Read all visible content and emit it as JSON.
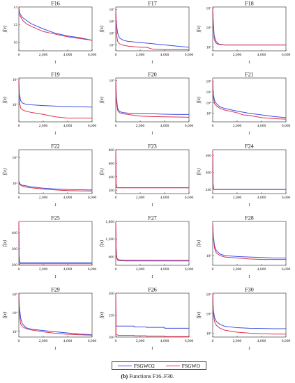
{
  "legend": [
    {
      "name": "FSGWO2",
      "color": "#3b4fe0"
    },
    {
      "name": "FSGWO",
      "color": "#e0304e"
    }
  ],
  "caption": {
    "label": "(b)",
    "text": "Functions F16–F30."
  },
  "xlabel": "t",
  "ylabel": "f(x)",
  "chart_data": [
    {
      "type": "line",
      "title": "F16",
      "xlim": [
        0,
        6000
      ],
      "xticks": [
        0,
        2000,
        4000,
        6000
      ],
      "ylim": [
        9,
        14
      ],
      "yscale": "linear",
      "yticks": [
        10,
        12,
        14
      ],
      "ytick_labels": [
        "10",
        "12",
        "14"
      ],
      "x": [
        0,
        100,
        300,
        600,
        1000,
        2000,
        3000,
        4000,
        5000,
        6000
      ],
      "series": [
        {
          "name": "FSGWO2",
          "values": [
            13.9,
            13.2,
            12.8,
            12.5,
            12.1,
            11.5,
            11.0,
            10.7,
            10.5,
            10.2
          ]
        },
        {
          "name": "FSGWO",
          "values": [
            13.9,
            13.0,
            12.5,
            12.1,
            11.8,
            11.2,
            10.9,
            10.6,
            10.4,
            10.2
          ]
        }
      ]
    },
    {
      "type": "line",
      "title": "F17",
      "xlim": [
        0,
        6000
      ],
      "xticks": [
        0,
        2000,
        4000,
        6000
      ],
      "ylim": [
        3.5,
        7.2
      ],
      "yscale": "log",
      "yticks": [
        4,
        5,
        6,
        7
      ],
      "ytick_labels": [
        "10⁴",
        "10⁵",
        "10⁶",
        "10⁷"
      ],
      "x": [
        0,
        50,
        150,
        300,
        600,
        1000,
        2000,
        2500,
        3000,
        4000,
        5000,
        6000
      ],
      "series": [
        {
          "name": "FSGWO2",
          "values": [
            6.9,
            5.8,
            5.0,
            4.6,
            4.4,
            4.3,
            4.2,
            4.15,
            4.1,
            4.0,
            3.9,
            3.8
          ]
        },
        {
          "name": "FSGWO",
          "values": [
            6.9,
            5.0,
            4.3,
            4.1,
            3.98,
            3.9,
            3.8,
            3.8,
            3.65,
            3.6,
            3.6,
            3.6
          ]
        }
      ]
    },
    {
      "type": "line",
      "title": "F18",
      "xlim": [
        0,
        6000
      ],
      "xticks": [
        0,
        2000,
        4000,
        6000
      ],
      "ylim": [
        2.6,
        7.1
      ],
      "yscale": "log",
      "yticks": [
        3,
        5,
        7
      ],
      "ytick_labels": [
        "10³",
        "10⁵",
        "10⁷"
      ],
      "x": [
        0,
        50,
        120,
        250,
        500,
        1000,
        2000,
        3000,
        4000,
        5000,
        6000
      ],
      "series": [
        {
          "name": "FSGWO2",
          "values": [
            7.0,
            5.5,
            4.2,
            3.6,
            3.3,
            3.2,
            3.2,
            3.2,
            3.2,
            3.2,
            3.2
          ]
        },
        {
          "name": "FSGWO",
          "values": [
            7.0,
            5.0,
            3.8,
            3.4,
            3.25,
            3.2,
            3.2,
            3.2,
            3.2,
            3.2,
            3.2
          ]
        }
      ]
    },
    {
      "type": "line",
      "title": "F19",
      "xlim": [
        0,
        6000
      ],
      "xticks": [
        0,
        2000,
        4000,
        6000
      ],
      "ylim": [
        0.3,
        2.05
      ],
      "yscale": "log",
      "yticks": [
        1,
        2
      ],
      "ytick_labels": [
        "10¹",
        "10²"
      ],
      "x": [
        0,
        50,
        150,
        300,
        600,
        1000,
        2000,
        3000,
        4000,
        5000,
        6000
      ],
      "series": [
        {
          "name": "FSGWO2",
          "values": [
            2.0,
            1.4,
            1.15,
            1.05,
            1.0,
            0.98,
            0.95,
            0.93,
            0.91,
            0.9,
            0.89
          ]
        },
        {
          "name": "FSGWO",
          "values": [
            2.0,
            1.1,
            0.85,
            0.78,
            0.72,
            0.68,
            0.6,
            0.5,
            0.45,
            0.45,
            0.45
          ]
        }
      ]
    },
    {
      "type": "line",
      "title": "F20",
      "xlim": [
        0,
        6000
      ],
      "xticks": [
        0,
        2000,
        4000,
        6000
      ],
      "ylim": [
        3.2,
        5.1
      ],
      "yscale": "log",
      "yticks": [
        5
      ],
      "ytick_labels": [
        "10⁵"
      ],
      "x": [
        0,
        50,
        150,
        300,
        600,
        1000,
        2000,
        3000,
        4000,
        5000,
        6000
      ],
      "series": [
        {
          "name": "FSGWO2",
          "values": [
            5.0,
            4.3,
            3.8,
            3.65,
            3.6,
            3.58,
            3.55,
            3.55,
            3.53,
            3.52,
            3.52
          ]
        },
        {
          "name": "FSGWO",
          "values": [
            5.0,
            4.1,
            3.7,
            3.6,
            3.55,
            3.52,
            3.45,
            3.43,
            3.42,
            3.41,
            3.4
          ]
        }
      ]
    },
    {
      "type": "line",
      "title": "F21",
      "xlim": [
        0,
        6000
      ],
      "xticks": [
        0,
        2000,
        4000,
        6000
      ],
      "ylim": [
        2.2,
        6.3
      ],
      "yscale": "log",
      "yticks": [
        3,
        4,
        5,
        6
      ],
      "ytick_labels": [
        "10³",
        "10⁴",
        "10⁵",
        "10⁶"
      ],
      "x": [
        0,
        50,
        150,
        300,
        600,
        1000,
        2000,
        2500,
        3000,
        4000,
        5000,
        6000
      ],
      "series": [
        {
          "name": "FSGWO2",
          "values": [
            6.1,
            4.8,
            4.2,
            3.9,
            3.6,
            3.45,
            3.2,
            3.1,
            3.0,
            2.85,
            2.7,
            2.6
          ]
        },
        {
          "name": "FSGWO",
          "values": [
            6.1,
            4.5,
            3.9,
            3.7,
            3.45,
            3.3,
            3.05,
            2.85,
            2.8,
            2.6,
            2.5,
            2.45
          ]
        }
      ]
    },
    {
      "type": "line",
      "title": "F22",
      "xlim": [
        0,
        6000
      ],
      "xticks": [
        0,
        2000,
        4000,
        6000
      ],
      "ylim": [
        1.2,
        4.6
      ],
      "yscale": "log",
      "yticks": [
        2,
        4
      ],
      "ytick_labels": [
        "10²",
        "10⁴"
      ],
      "x": [
        0,
        50,
        150,
        300,
        600,
        1000,
        2000,
        3000,
        4000,
        5000,
        6000
      ],
      "series": [
        {
          "name": "FSGWO2",
          "values": [
            2.2,
            2.0,
            1.9,
            1.85,
            1.8,
            1.72,
            1.62,
            1.56,
            1.52,
            1.5,
            1.48
          ]
        },
        {
          "name": "FSGWO",
          "values": [
            2.2,
            1.95,
            1.85,
            1.78,
            1.7,
            1.65,
            1.55,
            1.48,
            1.43,
            1.41,
            1.4
          ]
        }
      ]
    },
    {
      "type": "line",
      "title": "F23",
      "xlim": [
        0,
        6000
      ],
      "xticks": [
        0,
        2000,
        4000,
        6000
      ],
      "ylim": [
        150,
        800
      ],
      "yscale": "linear",
      "yticks": [
        200,
        400,
        600,
        800
      ],
      "ytick_labels": [
        "200",
        "400",
        "600",
        "800"
      ],
      "x": [
        0,
        30,
        80,
        200,
        6000
      ],
      "series": [
        {
          "name": "FSGWO2",
          "values": [
            800,
            300,
            240,
            238,
            238
          ]
        },
        {
          "name": "FSGWO",
          "values": [
            800,
            280,
            236,
            235,
            235
          ]
        }
      ]
    },
    {
      "type": "line",
      "title": "F24",
      "xlim": [
        0,
        6000
      ],
      "xticks": [
        0,
        2000,
        4000,
        6000
      ],
      "ylim": [
        225,
        380
      ],
      "yscale": "linear",
      "yticks": [
        240,
        300,
        360
      ],
      "ytick_labels": [
        "240",
        "300",
        "360"
      ],
      "x": [
        0,
        30,
        80,
        200,
        6000
      ],
      "series": [
        {
          "name": "FSGWO2",
          "values": [
            375,
            260,
            241,
            240,
            240
          ]
        },
        {
          "name": "FSGWO",
          "values": [
            375,
            250,
            240,
            239,
            239
          ]
        }
      ]
    },
    {
      "type": "line",
      "title": "F25",
      "xlim": [
        0,
        6000
      ],
      "xticks": [
        0,
        2000,
        4000,
        6000
      ],
      "ylim": [
        195,
        470
      ],
      "yscale": "linear",
      "yticks": [
        200,
        300,
        400
      ],
      "ytick_labels": [
        "200",
        "300",
        "400"
      ],
      "x": [
        0,
        30,
        80,
        200,
        6000
      ],
      "series": [
        {
          "name": "FSGWO2",
          "values": [
            465,
            250,
            212,
            210,
            210
          ]
        },
        {
          "name": "FSGWO",
          "values": [
            465,
            240,
            206,
            205,
            205
          ]
        }
      ]
    },
    {
      "type": "line",
      "title": "F27",
      "xlim": [
        0,
        6000
      ],
      "xticks": [
        0,
        2000,
        4000,
        6000
      ],
      "ylim": [
        300,
        1800
      ],
      "yscale": "linear",
      "yticks": [
        600,
        1200,
        1800
      ],
      "ytick_labels": [
        "600",
        "1,200",
        "1,800"
      ],
      "x": [
        0,
        30,
        80,
        200,
        500,
        1000,
        6000
      ],
      "series": [
        {
          "name": "FSGWO2",
          "values": [
            1780,
            900,
            560,
            490,
            480,
            475,
            470
          ]
        },
        {
          "name": "FSGWO",
          "values": [
            1780,
            850,
            530,
            460,
            455,
            450,
            448
          ]
        }
      ]
    },
    {
      "type": "line",
      "title": "F28",
      "xlim": [
        0,
        6000
      ],
      "xticks": [
        0,
        2000,
        4000,
        6000
      ],
      "ylim": [
        2.8,
        3.7
      ],
      "yscale": "log",
      "yticks": [
        3
      ],
      "ytick_labels": [
        "10³"
      ],
      "x": [
        0,
        50,
        150,
        300,
        600,
        1000,
        2000,
        3000,
        4000,
        5000,
        6000
      ],
      "series": [
        {
          "name": "FSGWO2",
          "values": [
            3.65,
            3.4,
            3.2,
            3.1,
            3.03,
            3.0,
            2.98,
            2.97,
            2.96,
            2.95,
            2.95
          ]
        },
        {
          "name": "FSGWO",
          "values": [
            3.65,
            3.35,
            3.15,
            3.05,
            3.0,
            2.97,
            2.95,
            2.93,
            2.92,
            2.92,
            2.92
          ]
        }
      ]
    },
    {
      "type": "line",
      "title": "F29",
      "xlim": [
        0,
        6000
      ],
      "xticks": [
        0,
        2000,
        4000,
        6000
      ],
      "ylim": [
        2.7,
        5.05
      ],
      "yscale": "log",
      "yticks": [
        3,
        4,
        5
      ],
      "ytick_labels": [
        "10³",
        "10⁴",
        "10⁵"
      ],
      "x": [
        0,
        50,
        150,
        300,
        600,
        1000,
        2000,
        3000,
        4000,
        5000,
        6000
      ],
      "series": [
        {
          "name": "FSGWO2",
          "values": [
            5.0,
            4.3,
            3.7,
            3.4,
            3.2,
            3.12,
            3.05,
            2.98,
            2.92,
            2.86,
            2.82
          ]
        },
        {
          "name": "FSGWO",
          "values": [
            5.0,
            3.9,
            3.4,
            3.25,
            3.15,
            3.08,
            2.98,
            2.9,
            2.85,
            2.82,
            2.8
          ]
        }
      ]
    },
    {
      "type": "line",
      "title": "F26",
      "xlim": [
        0,
        6000
      ],
      "xticks": [
        0,
        2000,
        4000,
        6000
      ],
      "ylim": [
        100,
        200
      ],
      "yscale": "linear",
      "yticks": [
        100,
        150,
        200
      ],
      "ytick_labels": [
        "100",
        "150",
        "200"
      ],
      "x": [
        0,
        20,
        200,
        1500,
        1500.1,
        2500,
        2500.1,
        4000,
        4000.1,
        6000
      ],
      "series": [
        {
          "name": "FSGWO2",
          "values": [
            200,
            125,
            125,
            125,
            123,
            123,
            122,
            122,
            120,
            120
          ]
        },
        {
          "name": "FSGWO",
          "values": [
            200,
            106,
            104,
            104,
            103,
            103,
            102,
            102,
            101,
            101
          ]
        }
      ]
    },
    {
      "type": "line",
      "title": "F30",
      "xlim": [
        0,
        6000
      ],
      "xticks": [
        0,
        2000,
        4000,
        6000
      ],
      "ylim": [
        2.8,
        5.05
      ],
      "yscale": "log",
      "yticks": [
        3,
        4,
        5
      ],
      "ytick_labels": [
        "10³",
        "10⁴",
        "10⁵"
      ],
      "x": [
        0,
        50,
        150,
        300,
        600,
        1000,
        2000,
        3000,
        4000,
        5000,
        6000
      ],
      "series": [
        {
          "name": "FSGWO2",
          "values": [
            5.0,
            4.2,
            3.8,
            3.6,
            3.45,
            3.35,
            3.28,
            3.25,
            3.24,
            3.23,
            3.23
          ]
        },
        {
          "name": "FSGWO",
          "values": [
            5.0,
            4.0,
            3.6,
            3.4,
            3.25,
            3.15,
            3.05,
            3.0,
            2.97,
            2.95,
            2.95
          ]
        }
      ]
    }
  ]
}
